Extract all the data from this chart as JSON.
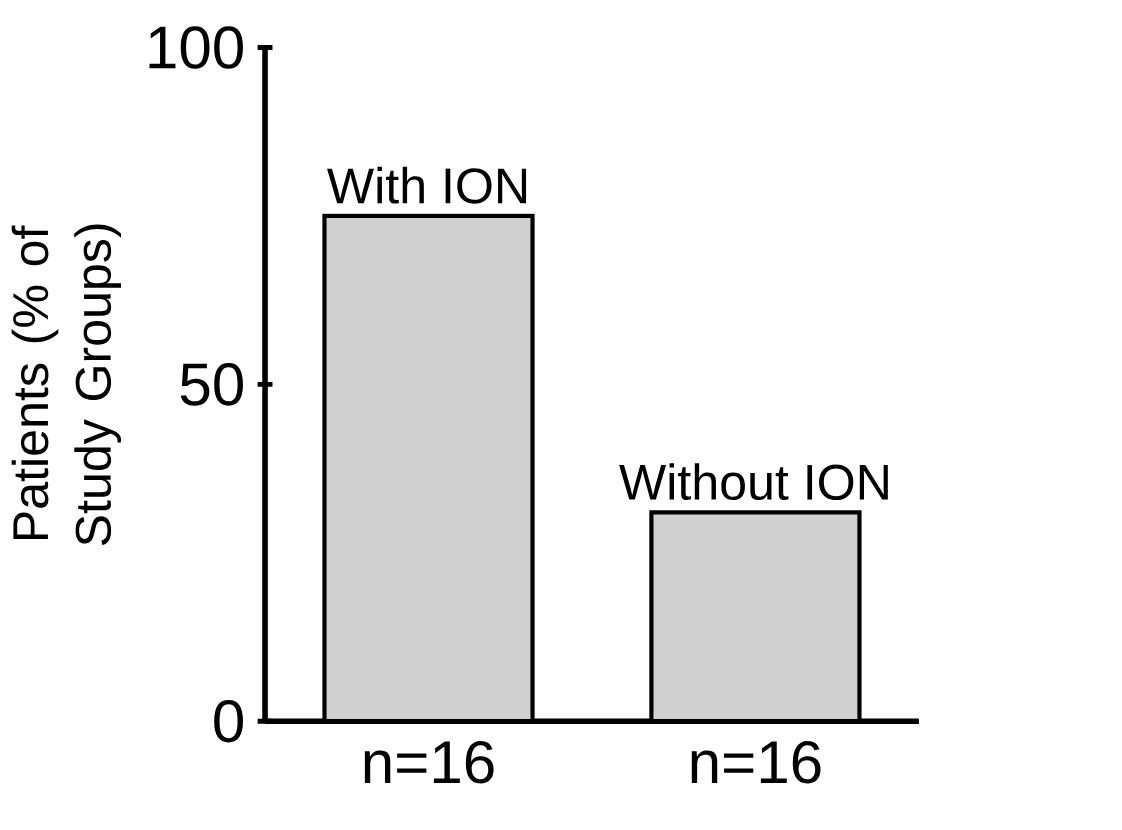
{
  "chart_data": {
    "type": "bar",
    "ylabel": "Patients (% of Study Groups)",
    "categories": [
      "n=16",
      "n=16"
    ],
    "values": [
      75,
      31
    ],
    "color": "#d0d0d0",
    "ylim": [
      0,
      100
    ],
    "yticks": [
      0,
      50,
      100
    ],
    "annotations": [
      "With ION",
      "Without ION"
    ]
  }
}
